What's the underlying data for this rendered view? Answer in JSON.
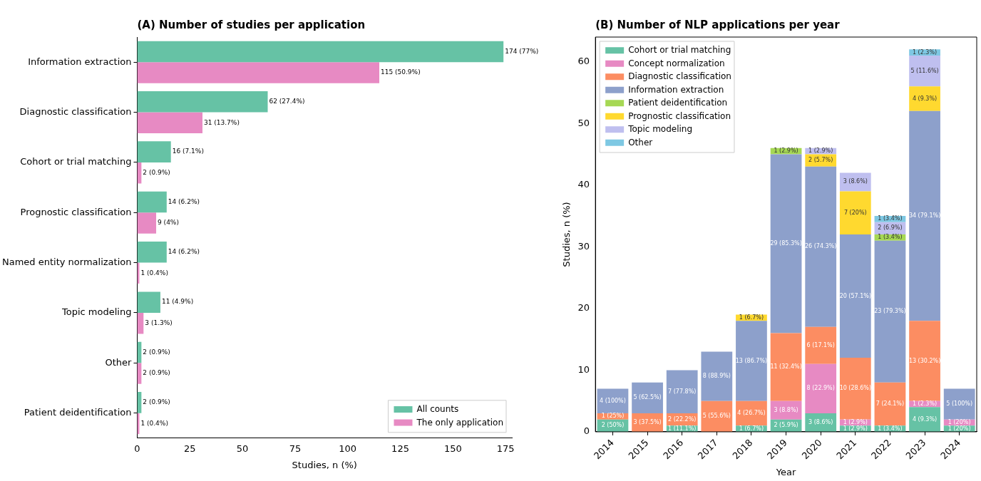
{
  "chart_data": [
    {
      "type": "bar",
      "orientation": "horizontal",
      "title": "(A) Number of studies per application",
      "xlabel": "Studies, n (%)",
      "categories": [
        "Information extraction",
        "Diagnostic classification",
        "Cohort or trial matching",
        "Prognostic classification",
        "Named entity normalization",
        "Topic modeling",
        "Other",
        "Patient deidentification"
      ],
      "xlim": [
        0,
        178
      ],
      "xticks": [
        0,
        25,
        50,
        75,
        100,
        125,
        150,
        175
      ],
      "grid": false,
      "legend": "bottom right",
      "series": [
        {
          "name": "All counts",
          "color": "#66c2a5",
          "values": [
            174,
            62,
            16,
            14,
            14,
            11,
            2,
            2
          ],
          "value_labels": [
            "174 (77%)",
            "62 (27.4%)",
            "16 (7.1%)",
            "14 (6.2%)",
            "14 (6.2%)",
            "11 (4.9%)",
            "2 (0.9%)",
            "2 (0.9%)"
          ]
        },
        {
          "name": "The only application",
          "color": "#e78ac3",
          "values": [
            115,
            31,
            2,
            9,
            1,
            3,
            2,
            1
          ],
          "value_labels": [
            "115 (50.9%)",
            "31 (13.7%)",
            "2 (0.9%)",
            "9 (4%)",
            "1 (0.4%)",
            "3 (1.3%)",
            "2 (0.9%)",
            "1 (0.4%)"
          ]
        }
      ]
    },
    {
      "type": "bar",
      "stacked": true,
      "title": "(B) Number of NLP applications per year",
      "xlabel": "Year",
      "ylabel": "Studies, n (%)",
      "categories": [
        "2014",
        "2015",
        "2016",
        "2017",
        "2018",
        "2019",
        "2020",
        "2021",
        "2022",
        "2023",
        "2024"
      ],
      "ylim": [
        0,
        64
      ],
      "yticks": [
        0,
        10,
        20,
        30,
        40,
        50,
        60
      ],
      "grid": false,
      "legend": "top left",
      "series": [
        {
          "name": "Cohort or trial matching",
          "color": "#66c2a5",
          "values": [
            2,
            null,
            1,
            null,
            1,
            2,
            3,
            1,
            1,
            4,
            1
          ],
          "value_labels": [
            "2 (50%)",
            null,
            "1 (11.1%)",
            null,
            "1 (6.7%)",
            "2 (5.9%)",
            "3 (8.6%)",
            "1 (2.9%)",
            "1 (3.4%)",
            "4 (9.3%)",
            "1 (20%)"
          ]
        },
        {
          "name": "Concept normalization",
          "color": "#e78ac3",
          "values": [
            null,
            null,
            null,
            null,
            null,
            3,
            8,
            1,
            null,
            1,
            1
          ],
          "value_labels": [
            null,
            null,
            null,
            null,
            null,
            "3 (8.8%)",
            "8 (22.9%)",
            "1 (2.9%)",
            null,
            "1 (2.3%)",
            "1 (20%)"
          ]
        },
        {
          "name": "Diagnostic classification",
          "color": "#fc8d62",
          "values": [
            1,
            3,
            2,
            5,
            4,
            11,
            6,
            10,
            7,
            13,
            null
          ],
          "value_labels": [
            "1 (25%)",
            "3 (37.5%)",
            "2 (22.2%)",
            "5 (55.6%)",
            "4 (26.7%)",
            "11 (32.4%)",
            "6 (17.1%)",
            "10 (28.6%)",
            "7 (24.1%)",
            "13 (30.2%)",
            null
          ]
        },
        {
          "name": "Information extraction",
          "color": "#8da0cb",
          "values": [
            4,
            5,
            7,
            8,
            13,
            29,
            26,
            20,
            23,
            34,
            5
          ],
          "value_labels": [
            "4 (100%)",
            "5 (62.5%)",
            "7 (77.8%)",
            "8 (88.9%)",
            "13 (86.7%)",
            "29 (85.3%)",
            "26 (74.3%)",
            "20 (57.1%)",
            "23 (79.3%)",
            "34 (79.1%)",
            "5 (100%)"
          ]
        },
        {
          "name": "Patient deidentification",
          "color": "#a6d854",
          "values": [
            null,
            null,
            null,
            null,
            null,
            1,
            null,
            null,
            1,
            null,
            null
          ],
          "value_labels": [
            null,
            null,
            null,
            null,
            null,
            "1 (2.9%)",
            null,
            null,
            "1 (3.4%)",
            null,
            null
          ]
        },
        {
          "name": "Prognostic classification",
          "color": "#ffd92f",
          "values": [
            null,
            null,
            null,
            null,
            1,
            null,
            2,
            7,
            null,
            4,
            null
          ],
          "value_labels": [
            null,
            null,
            null,
            null,
            "1 (6.7%)",
            null,
            "2 (5.7%)",
            "7 (20%)",
            null,
            "4 (9.3%)",
            null
          ]
        },
        {
          "name": "Topic modeling",
          "color": "#bfbfef",
          "values": [
            null,
            null,
            null,
            null,
            null,
            null,
            1,
            3,
            2,
            5,
            null
          ],
          "value_labels": [
            null,
            null,
            null,
            null,
            null,
            null,
            "1 (2.9%)",
            "3 (8.6%)",
            "2 (6.9%)",
            "5 (11.6%)",
            null
          ]
        },
        {
          "name": "Other",
          "color": "#7ec8e3",
          "values": [
            null,
            null,
            null,
            null,
            null,
            null,
            null,
            null,
            1,
            1,
            null
          ],
          "value_labels": [
            null,
            null,
            null,
            null,
            null,
            null,
            null,
            null,
            "1 (3.4%)",
            "1 (2.3%)",
            null
          ]
        }
      ]
    }
  ]
}
